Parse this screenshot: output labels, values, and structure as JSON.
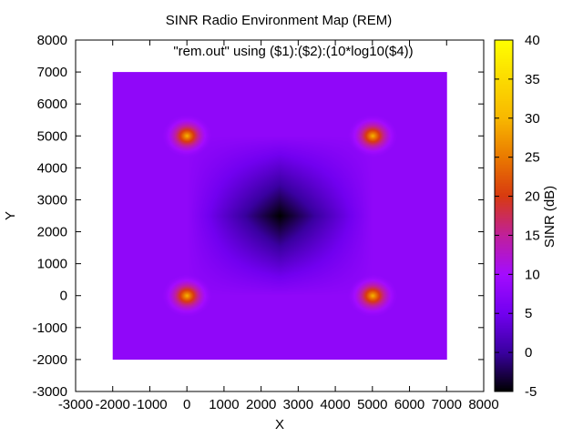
{
  "chart_data": {
    "type": "heatmap",
    "title": "SINR Radio Environment Map (REM)",
    "legend_entry": "\"rem.out\" using ($1):($2):(10*log10($4))",
    "xlabel": "X",
    "ylabel": "Y",
    "colorbar_label": "SINR (dB)",
    "xlim": [
      -3000,
      8000
    ],
    "ylim": [
      -3000,
      8000
    ],
    "xticks": [
      -3000,
      -2000,
      -1000,
      0,
      1000,
      2000,
      3000,
      4000,
      5000,
      6000,
      7000,
      8000
    ],
    "yticks": [
      -3000,
      -2000,
      -1000,
      0,
      1000,
      2000,
      3000,
      4000,
      5000,
      6000,
      7000,
      8000
    ],
    "data_extent": {
      "x": [
        -2000,
        7000
      ],
      "y": [
        -2000,
        7000
      ]
    },
    "colorbar": {
      "min": -5,
      "max": 40,
      "ticks": [
        -5,
        0,
        5,
        10,
        15,
        20,
        25,
        30,
        35,
        40
      ]
    },
    "colormap": [
      "#000000",
      "#3a00a0",
      "#7200f0",
      "#a40cff",
      "#c0209a",
      "#d83a10",
      "#ea7a00",
      "#f8b800",
      "#ffff00"
    ],
    "colormap_stops": [
      -5,
      0,
      5,
      10,
      15,
      20,
      25,
      30,
      40
    ],
    "transmitters": [
      {
        "x": 0,
        "y": 0,
        "peak_sinr_db": 30
      },
      {
        "x": 5000,
        "y": 0,
        "peak_sinr_db": 30
      },
      {
        "x": 0,
        "y": 5000,
        "peak_sinr_db": 30
      },
      {
        "x": 5000,
        "y": 5000,
        "peak_sinr_db": 30
      }
    ],
    "boundary_minimum": {
      "x": 2500,
      "y": 2500,
      "sinr_db": -5
    },
    "grid": false,
    "legend_position": "top-center"
  }
}
